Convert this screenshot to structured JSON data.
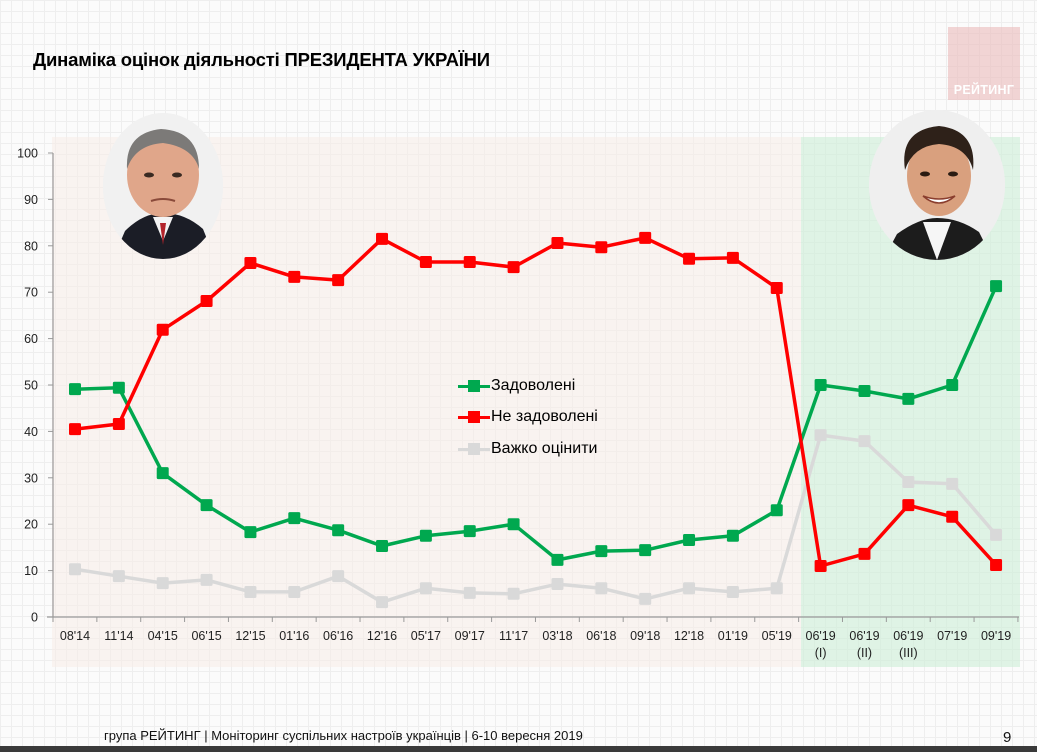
{
  "title": "Динаміка оцінок діяльності ПРЕЗИДЕНТА УКРАЇНИ",
  "brand": {
    "label": "РЕЙТИНГ"
  },
  "portraits": [
    {
      "name": "left-portrait",
      "description": "portrait-photo-previous-president"
    },
    {
      "name": "right-portrait",
      "description": "portrait-photo-current-president"
    }
  ],
  "legend": {
    "items": [
      {
        "label": "Задоволені",
        "color": "#00A84F"
      },
      {
        "label": "Не задоволені",
        "color": "#FF0000"
      },
      {
        "label": "Важко оцінити",
        "color": "#D9D9D9"
      }
    ]
  },
  "colors": {
    "green": "#00A84F",
    "red": "#FF0000",
    "gray": "#D9D9D9",
    "left_panel": "#F8ECE8",
    "right_panel": "#DCF2E3",
    "brand_box": "#EBBEBE"
  },
  "chart_data": {
    "type": "line",
    "title": "Динаміка оцінок діяльності ПРЕЗИДЕНТА УКРАЇНИ",
    "xlabel": "",
    "ylabel": "",
    "ylim": [
      0,
      100
    ],
    "yticks": [
      0,
      10,
      20,
      30,
      40,
      50,
      60,
      70,
      80,
      90,
      100
    ],
    "grid": false,
    "legend_position": "center",
    "categories": [
      "08'14",
      "11'14",
      "04'15",
      "06'15",
      "12'15",
      "01'16",
      "06'16",
      "12'16",
      "05'17",
      "09'17",
      "11'17",
      "03'18",
      "06'18",
      "09'18",
      "12'18",
      "01'19",
      "05'19",
      "06'19 (I)",
      "06'19 (II)",
      "06'19 (III)",
      "07'19",
      "09'19"
    ],
    "category_lines": [
      [
        "08'14",
        ""
      ],
      [
        "11'14",
        ""
      ],
      [
        "04'15",
        ""
      ],
      [
        "06'15",
        ""
      ],
      [
        "12'15",
        ""
      ],
      [
        "01'16",
        ""
      ],
      [
        "06'16",
        ""
      ],
      [
        "12'16",
        ""
      ],
      [
        "05'17",
        ""
      ],
      [
        "09'17",
        ""
      ],
      [
        "11'17",
        ""
      ],
      [
        "03'18",
        ""
      ],
      [
        "06'18",
        ""
      ],
      [
        "09'18",
        ""
      ],
      [
        "12'18",
        ""
      ],
      [
        "01'19",
        ""
      ],
      [
        "05'19",
        ""
      ],
      [
        "06'19",
        "(I)"
      ],
      [
        "06'19",
        "(II)"
      ],
      [
        "06'19",
        "(III)"
      ],
      [
        "07'19",
        ""
      ],
      [
        "09'19",
        ""
      ]
    ],
    "series": [
      {
        "name": "Задоволені",
        "color": "#00A84F",
        "values": [
          49.1,
          49.4,
          31.0,
          24.1,
          18.3,
          21.3,
          18.7,
          15.3,
          17.5,
          18.5,
          20.0,
          12.3,
          14.2,
          14.4,
          16.6,
          17.5,
          23.0,
          50.0,
          48.7,
          47.0,
          50.0,
          71.3
        ]
      },
      {
        "name": "Не задоволені",
        "color": "#FF0000",
        "values": [
          40.5,
          41.6,
          61.9,
          68.1,
          76.3,
          73.3,
          72.6,
          81.5,
          76.5,
          76.5,
          75.4,
          80.6,
          79.7,
          81.7,
          77.2,
          77.4,
          70.9,
          11.0,
          13.6,
          24.1,
          21.6,
          11.2
        ]
      },
      {
        "name": "Важко оцінити",
        "color": "#D9D9D9",
        "values": [
          10.3,
          8.8,
          7.3,
          8.0,
          5.4,
          5.4,
          8.8,
          3.2,
          6.2,
          5.2,
          5.0,
          7.1,
          6.2,
          3.9,
          6.2,
          5.4,
          6.2,
          39.2,
          37.9,
          29.1,
          28.7,
          17.7
        ]
      }
    ],
    "annotations": [
      "Shaded pink region: 08'14–05'19",
      "Shaded green region: 06'19 (I)–09'19"
    ]
  },
  "footer": {
    "text": "група РЕЙТИНГ | Моніторинг суспільних настроїв українців | 6-10 вересня 2019",
    "page_number": "9"
  }
}
